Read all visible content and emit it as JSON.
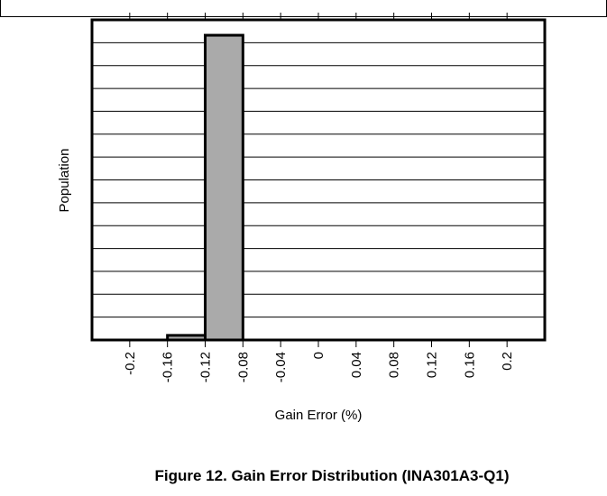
{
  "chart_data": {
    "type": "bar",
    "title": "",
    "caption": "Figure 12. Gain Error Distribution (INA301A3-Q1)",
    "xlabel": "Gain Error (%)",
    "ylabel": "Population",
    "x_tick_labels": [
      "-0.2",
      "-0.16",
      "-0.12",
      "-0.08",
      "-0.04",
      "0",
      "0.04",
      "0.08",
      "0.12",
      "0.16",
      "0.2"
    ],
    "categories": [
      "-0.22",
      "-0.18",
      "-0.14",
      "-0.1",
      "-0.06",
      "-0.02",
      "0.02",
      "0.06",
      "0.1",
      "0.14",
      "0.18",
      "0.22"
    ],
    "values": [
      0,
      0,
      1.5,
      99,
      0,
      0,
      0,
      0,
      0,
      0,
      0,
      0
    ],
    "xlim": [
      -0.24,
      0.24
    ],
    "ylim": [
      0,
      104
    ],
    "y_gridlines": 14,
    "grid": true,
    "y_tick_labels_shown": false,
    "bar_color": "#aaaaaa",
    "bar_edge_color": "#000000"
  }
}
